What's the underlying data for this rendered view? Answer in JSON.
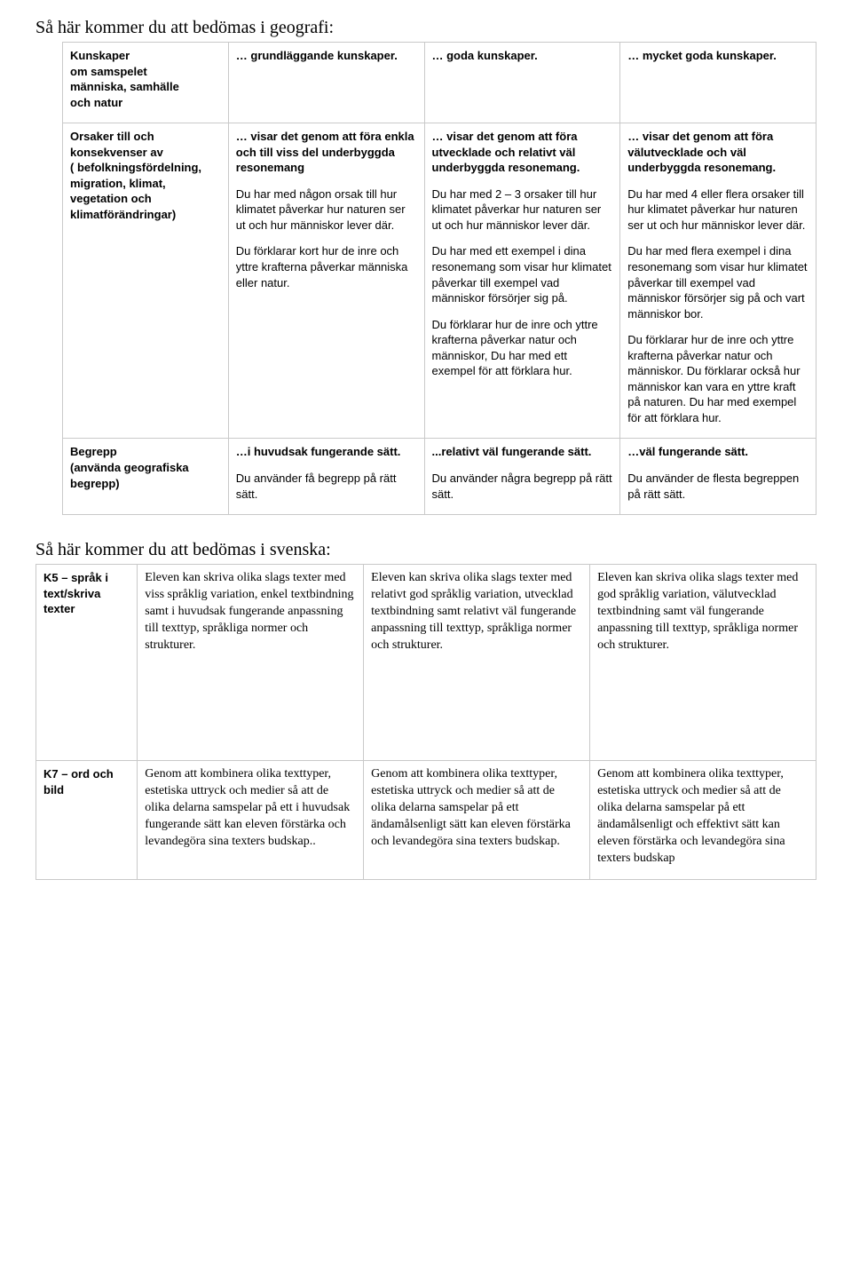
{
  "geo": {
    "title": "Så här kommer du att bedömas i geografi:",
    "header": {
      "c1": "Kunskaper\nom samspelet\nmänniska, samhälle\noch natur",
      "c2": "… grundläggande kunskaper.",
      "c3": "… goda kunskaper.",
      "c4": "… mycket goda kunskaper."
    },
    "row1": {
      "c1": "Orsaker till och konsekvenser av\n( befolkningsfördelning, migration, klimat, vegetation och klimatförändringar)",
      "c2_lead": "… visar det genom att föra  enkla och till viss del underbyggda resonemang",
      "c2_p1": " Du har med någon orsak till hur klimatet påverkar hur naturen ser ut och hur människor lever där.",
      "c2_p2": "Du förklarar kort hur de inre och yttre krafterna påverkar människa eller natur.",
      "c3_lead": "… visar det genom att föra utvecklade och relativt väl underbyggda resonemang.",
      "c3_p1": "  Du har med 2 – 3 orsaker till hur klimatet påverkar hur naturen ser ut och hur människor lever där.",
      "c3_p2": "Du har med ett exempel i dina resonemang som visar hur klimatet påverkar till exempel vad människor försörjer sig på.",
      "c3_p3": "Du förklarar hur de inre och yttre krafterna påverkar natur och människor, Du har med ett exempel för att förklara hur.",
      "c4_lead": "… visar det genom att föra välutvecklade och väl underbyggda resonemang.",
      "c4_p1": "  Du har med 4 eller flera orsaker till hur klimatet påverkar hur naturen ser ut och hur människor lever där.",
      "c4_p2": "Du har med flera exempel i dina resonemang som visar hur klimatet påverkar till exempel vad människor försörjer sig på och vart människor bor.",
      "c4_p3": "Du förklarar hur de inre och yttre krafterna påverkar natur och människor. Du förklarar också hur människor kan vara en yttre kraft på naturen. Du har med exempel för att förklara hur."
    },
    "row2": {
      "c1": "Begrepp\n(använda geografiska begrepp)",
      "c2_lead": "…i huvudsak fungerande sätt.",
      "c2_p1": "Du använder få begrepp på rätt sätt.",
      "c3_lead": "...relativt väl fungerande sätt.",
      "c3_p1": "Du använder några begrepp på rätt sätt.",
      "c4_lead": " …väl fungerande sätt.",
      "c4_p1": "Du använder de flesta begreppen på rätt sätt."
    }
  },
  "sv": {
    "title": "Så här kommer du att bedömas i svenska:",
    "row1": {
      "c1": "K5 – språk i text/skriva texter",
      "c2": "Eleven kan skriva olika slags texter med viss språklig variation, enkel textbindning samt i huvudsak fungerande anpassning till texttyp, språkliga normer och strukturer.",
      "c3": "Eleven kan skriva olika slags texter med relativt god språklig variation, utvecklad textbindning samt relativt väl fungerande anpassning till texttyp, språkliga normer och strukturer.",
      "c4": "Eleven kan skriva olika slags texter med god språklig variation, välutvecklad textbindning samt väl fungerande anpassning till texttyp, språkliga normer och strukturer."
    },
    "row2": {
      "c1": "K7 – ord och bild",
      "c2": "Genom att kombinera olika texttyper, estetiska uttryck och medier så att de olika delarna samspelar på ett i huvudsak fungerande sätt kan eleven förstärka och levandegöra sina texters budskap..",
      "c3": "Genom att kombinera olika texttyper, estetiska uttryck och medier så att de olika delarna samspelar på ett ändamålsenligt sätt kan eleven förstärka och levandegöra sina texters budskap.",
      "c4": "Genom att kombinera olika texttyper, estetiska uttryck och medier så att de olika delarna samspelar på ett ändamålsenligt och effektivt sätt kan eleven förstärka och levandegöra sina texters budskap"
    }
  }
}
